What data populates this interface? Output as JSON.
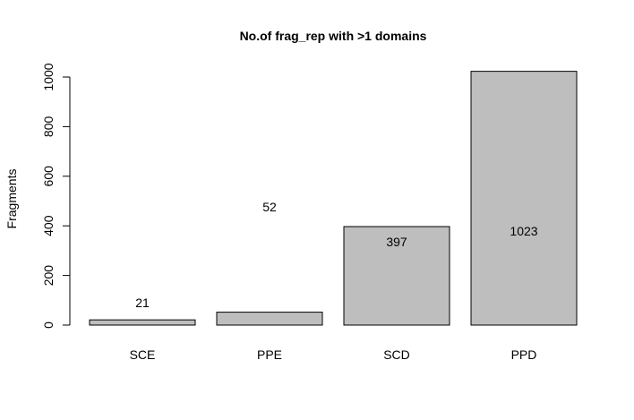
{
  "chart_data": {
    "type": "bar",
    "title": "No.of frag_rep with >1 domains",
    "xlabel": "",
    "ylabel": "Fragments",
    "categories": [
      "SCE",
      "PPE",
      "SCD",
      "PPD"
    ],
    "values": [
      21,
      52,
      397,
      1023
    ],
    "data_labels": [
      "21",
      "52",
      "397",
      "1023"
    ],
    "ylim": [
      0,
      1000
    ],
    "yticks": [
      0,
      200,
      400,
      600,
      800,
      1000
    ],
    "grid": false,
    "legend": "none",
    "bar_color": "#bebebe"
  }
}
